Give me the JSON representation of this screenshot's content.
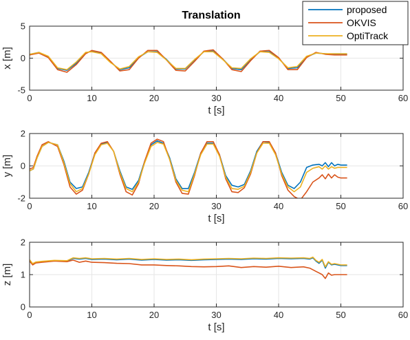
{
  "figure": {
    "title": "Translation",
    "legend": {
      "placement": "top-right",
      "entries": [
        {
          "label": "proposed",
          "color": "#0072BD"
        },
        {
          "label": "OKVIS",
          "color": "#D95319"
        },
        {
          "label": "OptiTrack",
          "color": "#EDB120"
        }
      ]
    }
  },
  "chart_data": [
    {
      "type": "line",
      "title": "Translation",
      "xlabel": "t [s]",
      "ylabel": "x [m]",
      "xlim": [
        0,
        60
      ],
      "ylim": [
        -5,
        5
      ],
      "xticks": [
        0,
        10,
        20,
        30,
        40,
        50,
        60
      ],
      "yticks": [
        -5,
        0,
        5
      ],
      "grid": true,
      "series": [
        {
          "name": "proposed",
          "color": "#0072BD",
          "x": [
            0,
            1.5,
            3,
            4.5,
            6,
            7.5,
            9,
            10,
            11.5,
            13,
            14.5,
            16,
            17.5,
            19,
            20.5,
            22,
            23.5,
            25,
            26.5,
            28,
            29.5,
            31,
            32.5,
            34,
            35.5,
            37,
            38.5,
            40,
            41.5,
            43,
            44.5,
            46,
            47.5,
            49,
            51
          ],
          "y": [
            0.6,
            0.9,
            0.2,
            -1.6,
            -1.9,
            -0.8,
            0.8,
            1.1,
            0.8,
            -0.6,
            -1.8,
            -1.5,
            0.1,
            1.0,
            1.0,
            -0.2,
            -1.7,
            -1.7,
            -0.3,
            1.0,
            1.1,
            -0.1,
            -1.6,
            -1.8,
            -0.2,
            1.0,
            1.0,
            0.0,
            -1.6,
            -1.5,
            0.2,
            0.8,
            0.7,
            0.6,
            0.6
          ]
        },
        {
          "name": "OKVIS",
          "color": "#D95319",
          "x": [
            0,
            1.5,
            3,
            4.5,
            6,
            7.5,
            9,
            10,
            11.5,
            13,
            14.5,
            16,
            17.5,
            19,
            20.5,
            22,
            23.5,
            25,
            26.5,
            28,
            29.5,
            31,
            32.5,
            34,
            35.5,
            37,
            38.5,
            40,
            41.5,
            43,
            44.5,
            46,
            47.5,
            49,
            51
          ],
          "y": [
            0.5,
            0.8,
            0.1,
            -1.8,
            -2.2,
            -1.0,
            0.7,
            1.2,
            0.9,
            -0.5,
            -2.0,
            -1.8,
            0.0,
            1.2,
            1.2,
            -0.3,
            -1.9,
            -2.0,
            -0.5,
            1.1,
            1.3,
            -0.1,
            -1.8,
            -2.1,
            -0.4,
            1.1,
            1.2,
            0.1,
            -1.8,
            -1.8,
            0.1,
            0.9,
            0.6,
            0.5,
            0.5
          ]
        },
        {
          "name": "OptiTrack",
          "color": "#EDB120",
          "x": [
            0,
            1.5,
            3,
            4.5,
            6,
            7.5,
            9,
            10,
            11.5,
            13,
            14.5,
            16,
            17.5,
            19,
            20.5,
            22,
            23.5,
            25,
            26.5,
            28,
            29.5,
            31,
            32.5,
            34,
            35.5,
            37,
            38.5,
            40,
            41.5,
            43,
            44.5,
            46,
            47.5,
            49,
            51
          ],
          "y": [
            0.6,
            0.9,
            0.3,
            -1.5,
            -1.8,
            -0.6,
            0.9,
            1.0,
            0.7,
            -0.7,
            -1.7,
            -1.3,
            0.2,
            1.0,
            0.9,
            -0.3,
            -1.6,
            -1.6,
            -0.2,
            1.0,
            1.0,
            -0.2,
            -1.5,
            -1.6,
            -0.1,
            1.0,
            0.9,
            -0.1,
            -1.5,
            -1.3,
            0.3,
            0.8,
            0.7,
            0.7,
            0.7
          ]
        }
      ]
    },
    {
      "type": "line",
      "xlabel": "t [s]",
      "ylabel": "y [m]",
      "xlim": [
        0,
        60
      ],
      "ylim": [
        -2,
        2
      ],
      "xticks": [
        0,
        10,
        20,
        30,
        40,
        50,
        60
      ],
      "yticks": [
        -2,
        0,
        2
      ],
      "grid": true,
      "series": [
        {
          "name": "proposed",
          "color": "#0072BD",
          "x": [
            0,
            0.6,
            1.2,
            2,
            3,
            4.5,
            5.5,
            6.5,
            7.5,
            8.5,
            9.5,
            10.5,
            11.5,
            12.5,
            13.5,
            14.5,
            15.5,
            16.5,
            17.5,
            18.5,
            19.5,
            20.5,
            21.5,
            22.5,
            23.5,
            24.5,
            25.5,
            26.5,
            27.5,
            28.5,
            29.5,
            30.5,
            31.5,
            32.5,
            33.5,
            34.5,
            35.5,
            36.5,
            37.5,
            38.5,
            39.5,
            40.5,
            41.5,
            42.5,
            43.5,
            44.5,
            45.5,
            46.5,
            47,
            47.5,
            48,
            48.5,
            49,
            49.5,
            50,
            51
          ],
          "y": [
            -0.3,
            -0.2,
            0.5,
            1.2,
            1.45,
            1.3,
            0.3,
            -1.0,
            -1.4,
            -1.3,
            -0.4,
            0.8,
            1.35,
            1.45,
            0.9,
            -0.3,
            -1.3,
            -1.45,
            -0.9,
            0.3,
            1.3,
            1.55,
            1.4,
            0.5,
            -0.8,
            -1.4,
            -1.4,
            -0.4,
            0.8,
            1.4,
            1.4,
            0.7,
            -0.6,
            -1.2,
            -1.3,
            -1.15,
            -0.3,
            0.9,
            1.5,
            1.45,
            0.8,
            -0.4,
            -1.2,
            -1.4,
            -1.0,
            -0.1,
            0.05,
            0.1,
            0.0,
            0.2,
            -0.05,
            0.2,
            0.0,
            0.1,
            0.05,
            0.05
          ]
        },
        {
          "name": "OKVIS",
          "color": "#D95319",
          "x": [
            0,
            0.6,
            1.2,
            2,
            3,
            4.5,
            5.5,
            6.5,
            7.5,
            8.5,
            9.5,
            10.5,
            11.5,
            12.5,
            13.5,
            14.5,
            15.5,
            16.5,
            17.5,
            18.5,
            19.5,
            20.5,
            21.5,
            22.5,
            23.5,
            24.5,
            25.5,
            26.5,
            27.5,
            28.5,
            29.5,
            30.5,
            31.5,
            32.5,
            33.5,
            34.5,
            35.5,
            36.5,
            37.5,
            38.5,
            39.5,
            40.5,
            41.5,
            42.5,
            43.5,
            44.5,
            45.5,
            46.5,
            47,
            47.5,
            48,
            48.5,
            49,
            49.5,
            50,
            51
          ],
          "y": [
            -0.2,
            -0.1,
            0.6,
            1.3,
            1.5,
            1.2,
            0.1,
            -1.3,
            -1.75,
            -1.5,
            -0.5,
            0.8,
            1.4,
            1.5,
            0.9,
            -0.5,
            -1.6,
            -1.8,
            -1.1,
            0.3,
            1.4,
            1.65,
            1.5,
            0.4,
            -1.0,
            -1.7,
            -1.75,
            -0.6,
            0.8,
            1.5,
            1.5,
            0.7,
            -0.8,
            -1.6,
            -1.65,
            -1.35,
            -0.5,
            0.8,
            1.5,
            1.5,
            0.8,
            -0.6,
            -1.5,
            -1.9,
            -2.1,
            -1.6,
            -1.0,
            -0.75,
            -0.55,
            -0.8,
            -0.5,
            -0.75,
            -0.55,
            -0.7,
            -0.75,
            -0.75
          ]
        },
        {
          "name": "OptiTrack",
          "color": "#EDB120",
          "x": [
            0,
            0.6,
            1.2,
            2,
            3,
            4.5,
            5.5,
            6.5,
            7.5,
            8.5,
            9.5,
            10.5,
            11.5,
            12.5,
            13.5,
            14.5,
            15.5,
            16.5,
            17.5,
            18.5,
            19.5,
            20.5,
            21.5,
            22.5,
            23.5,
            24.5,
            25.5,
            26.5,
            27.5,
            28.5,
            29.5,
            30.5,
            31.5,
            32.5,
            33.5,
            34.5,
            35.5,
            36.5,
            37.5,
            38.5,
            39.5,
            40.5,
            41.5,
            42.5,
            43.5,
            44.5,
            45.5,
            46.5,
            47,
            47.5,
            48,
            48.5,
            49,
            49.5,
            50,
            51
          ],
          "y": [
            -0.3,
            -0.2,
            0.5,
            1.2,
            1.45,
            1.3,
            0.2,
            -1.1,
            -1.6,
            -1.4,
            -0.5,
            0.7,
            1.3,
            1.4,
            0.9,
            -0.4,
            -1.4,
            -1.6,
            -1.0,
            0.2,
            1.2,
            1.45,
            1.35,
            0.4,
            -0.9,
            -1.5,
            -1.6,
            -0.5,
            0.7,
            1.35,
            1.35,
            0.6,
            -0.7,
            -1.4,
            -1.45,
            -1.25,
            -0.4,
            0.8,
            1.4,
            1.4,
            0.7,
            -0.5,
            -1.3,
            -1.6,
            -1.3,
            -0.4,
            -0.15,
            -0.05,
            -0.2,
            0.0,
            -0.2,
            -0.05,
            -0.15,
            -0.1,
            -0.1,
            -0.1
          ]
        }
      ]
    },
    {
      "type": "line",
      "xlabel": "t [s]",
      "ylabel": "z [m]",
      "xlim": [
        0,
        60
      ],
      "ylim": [
        0,
        2
      ],
      "xticks": [
        0,
        10,
        20,
        30,
        40,
        50,
        60
      ],
      "yticks": [
        0,
        1,
        2
      ],
      "grid": true,
      "series": [
        {
          "name": "proposed",
          "color": "#0072BD",
          "x": [
            0,
            0.5,
            1,
            2,
            4,
            6,
            7,
            8,
            9,
            10,
            12,
            14,
            16,
            18,
            20,
            22,
            24,
            26,
            28,
            30,
            32,
            34,
            36,
            38,
            40,
            42,
            44,
            45,
            45.5,
            46,
            46.5,
            47,
            47.5,
            48,
            48.5,
            49,
            50,
            51
          ],
          "y": [
            1.45,
            1.32,
            1.38,
            1.4,
            1.43,
            1.42,
            1.5,
            1.48,
            1.5,
            1.47,
            1.48,
            1.46,
            1.48,
            1.45,
            1.47,
            1.45,
            1.46,
            1.44,
            1.46,
            1.47,
            1.48,
            1.47,
            1.49,
            1.48,
            1.5,
            1.49,
            1.5,
            1.48,
            1.52,
            1.42,
            1.35,
            1.45,
            1.2,
            1.38,
            1.3,
            1.32,
            1.28,
            1.28
          ]
        },
        {
          "name": "OKVIS",
          "color": "#D95319",
          "x": [
            0,
            0.5,
            1,
            2,
            4,
            6,
            7,
            8,
            9,
            10,
            12,
            14,
            16,
            18,
            20,
            22,
            24,
            26,
            28,
            30,
            32,
            34,
            36,
            38,
            40,
            42,
            44,
            45,
            45.5,
            46,
            46.5,
            47,
            47.5,
            48,
            48.5,
            49,
            50,
            51
          ],
          "y": [
            1.42,
            1.3,
            1.36,
            1.38,
            1.42,
            1.4,
            1.45,
            1.38,
            1.42,
            1.38,
            1.37,
            1.35,
            1.34,
            1.3,
            1.3,
            1.28,
            1.27,
            1.25,
            1.24,
            1.25,
            1.27,
            1.22,
            1.25,
            1.23,
            1.26,
            1.22,
            1.24,
            1.2,
            1.15,
            1.1,
            1.05,
            1.0,
            0.88,
            1.05,
            0.98,
            1.0,
            1.0,
            1.0
          ]
        },
        {
          "name": "OptiTrack",
          "color": "#EDB120",
          "x": [
            0,
            0.5,
            1,
            2,
            4,
            6,
            7,
            8,
            9,
            10,
            12,
            14,
            16,
            18,
            20,
            22,
            24,
            26,
            28,
            30,
            32,
            34,
            36,
            38,
            40,
            42,
            44,
            45,
            45.5,
            46,
            46.5,
            47,
            47.5,
            48,
            48.5,
            49,
            50,
            51
          ],
          "y": [
            1.46,
            1.34,
            1.39,
            1.41,
            1.44,
            1.43,
            1.52,
            1.5,
            1.52,
            1.49,
            1.5,
            1.48,
            1.5,
            1.47,
            1.49,
            1.47,
            1.48,
            1.46,
            1.48,
            1.49,
            1.5,
            1.49,
            1.51,
            1.5,
            1.52,
            1.51,
            1.52,
            1.5,
            1.54,
            1.44,
            1.38,
            1.47,
            1.24,
            1.4,
            1.32,
            1.34,
            1.3,
            1.3
          ]
        }
      ]
    }
  ]
}
